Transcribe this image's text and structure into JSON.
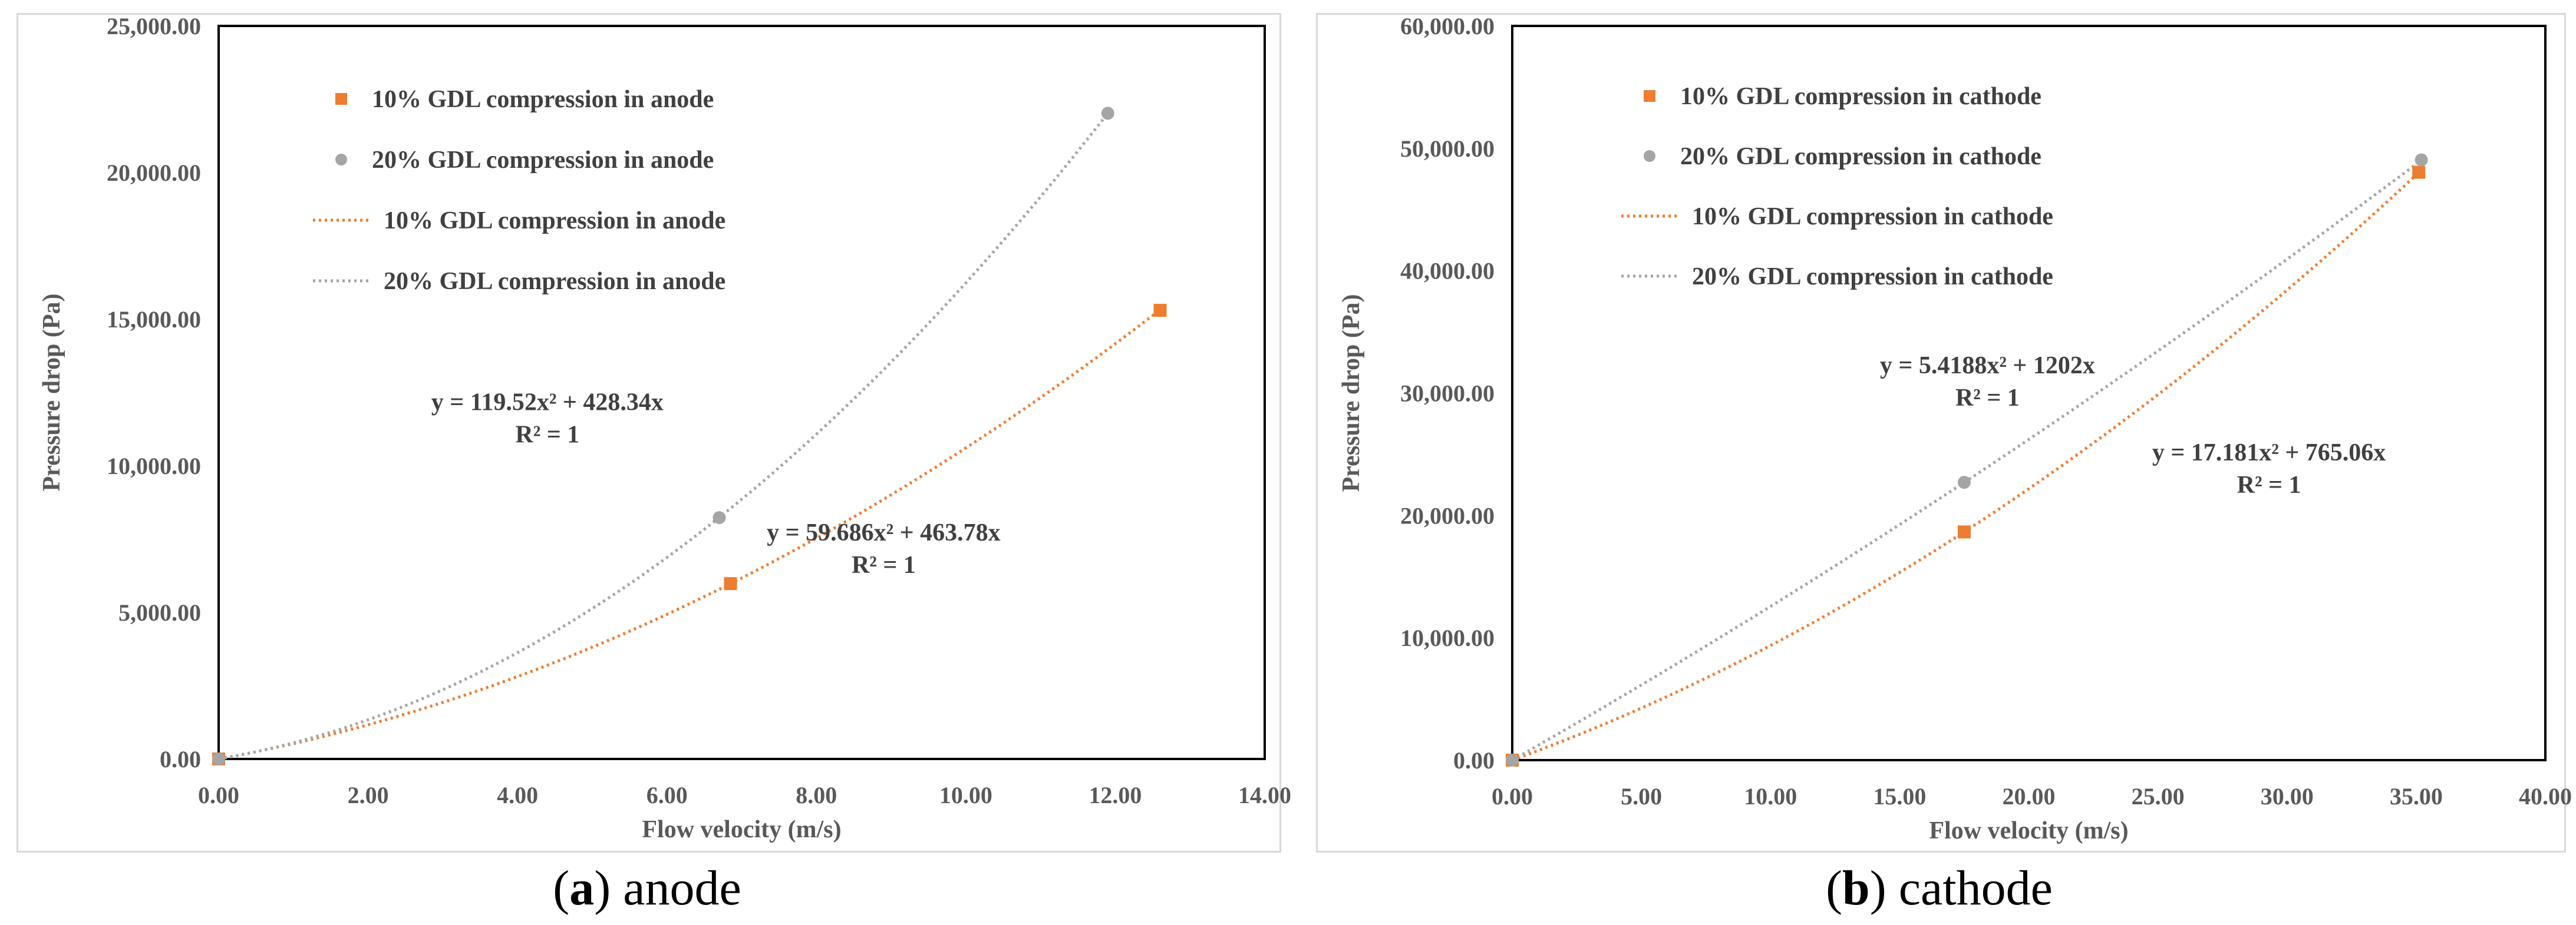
{
  "chart_data": [
    {
      "type": "scatter",
      "panel_id": "a",
      "xlabel": "Flow velocity (m/s)",
      "ylabel": "Pressure drop (Pa)",
      "xlim": [
        0,
        14
      ],
      "ylim": [
        0,
        25000
      ],
      "xticks": [
        0,
        2,
        4,
        6,
        8,
        10,
        12,
        14
      ],
      "yticks": [
        0,
        5000,
        10000,
        15000,
        20000,
        25000
      ],
      "xtick_labels": [
        "0.00",
        "2.00",
        "4.00",
        "6.00",
        "8.00",
        "10.00",
        "12.00",
        "14.00"
      ],
      "ytick_labels": [
        "0.00",
        "5,000.00",
        "10,000.00",
        "15,000.00",
        "20,000.00",
        "25,000.00"
      ],
      "legend": [
        "10% GDL compression in anode",
        "20% GDL compression in anode",
        "10% GDL compression in anode",
        "20% GDL compression in anode"
      ],
      "series": [
        {
          "name": "10% GDL compression in anode",
          "color": "#ED7D31",
          "marker": "square",
          "x": [
            0,
            6.85,
            12.6
          ],
          "y": [
            0,
            5980,
            15300
          ],
          "trend": {
            "a": 59.686,
            "b": 463.78
          }
        },
        {
          "name": "20% GDL compression in anode",
          "color": "#A5A5A5",
          "marker": "circle",
          "x": [
            0,
            6.7,
            11.9
          ],
          "y": [
            0,
            8230,
            22020
          ],
          "trend": {
            "a": 119.52,
            "b": 428.34
          }
        }
      ],
      "annotations": [
        {
          "series": 1,
          "equation": "y = 119.52x² + 428.34x",
          "r2": "R² = 1",
          "anchor_x": 4.4,
          "anchor_y": 11900
        },
        {
          "series": 0,
          "equation": "y = 59.686x² + 463.78x",
          "r2": "R² = 1",
          "anchor_x": 8.9,
          "anchor_y": 7450
        }
      ],
      "caption_letter": "a",
      "caption_text": " anode"
    },
    {
      "type": "scatter",
      "panel_id": "b",
      "xlabel": "Flow velocity (m/s)",
      "ylabel": "Pressure drop (Pa)",
      "xlim": [
        0,
        40
      ],
      "ylim": [
        0,
        60000
      ],
      "xticks": [
        0,
        5,
        10,
        15,
        20,
        25,
        30,
        35,
        40
      ],
      "yticks": [
        0,
        10000,
        20000,
        30000,
        40000,
        50000,
        60000
      ],
      "xtick_labels": [
        "0.00",
        "5.00",
        "10.00",
        "15.00",
        "20.00",
        "25.00",
        "30.00",
        "35.00",
        "40.00"
      ],
      "ytick_labels": [
        "0.00",
        "10,000.00",
        "20,000.00",
        "30,000.00",
        "40,000.00",
        "50,000.00",
        "60,000.00"
      ],
      "legend": [
        "10% GDL compression in cathode",
        "20% GDL compression in cathode",
        "10% GDL compression in cathode",
        "20% GDL compression in cathode"
      ],
      "series": [
        {
          "name": "10% GDL compression in cathode",
          "color": "#ED7D31",
          "marker": "square",
          "x": [
            0,
            17.5,
            35.1
          ],
          "y": [
            0,
            18650,
            48040
          ],
          "trend": {
            "a": 17.181,
            "b": 765.06
          }
        },
        {
          "name": "20% GDL compression in cathode",
          "color": "#A5A5A5",
          "marker": "circle",
          "x": [
            0,
            17.5,
            35.2
          ],
          "y": [
            0,
            22700,
            49050
          ],
          "trend": {
            "a": 5.4188,
            "b": 1202
          }
        }
      ],
      "annotations": [
        {
          "series": 1,
          "equation": "y = 5.4188x² + 1202x",
          "r2": "R² = 1",
          "anchor_x": 18.4,
          "anchor_y": 31600
        },
        {
          "series": 0,
          "equation": "y = 17.181x² + 765.06x",
          "r2": "R² = 1",
          "anchor_x": 29.3,
          "anchor_y": 24500
        }
      ],
      "caption_letter": "b",
      "caption_text": " cathode"
    }
  ]
}
